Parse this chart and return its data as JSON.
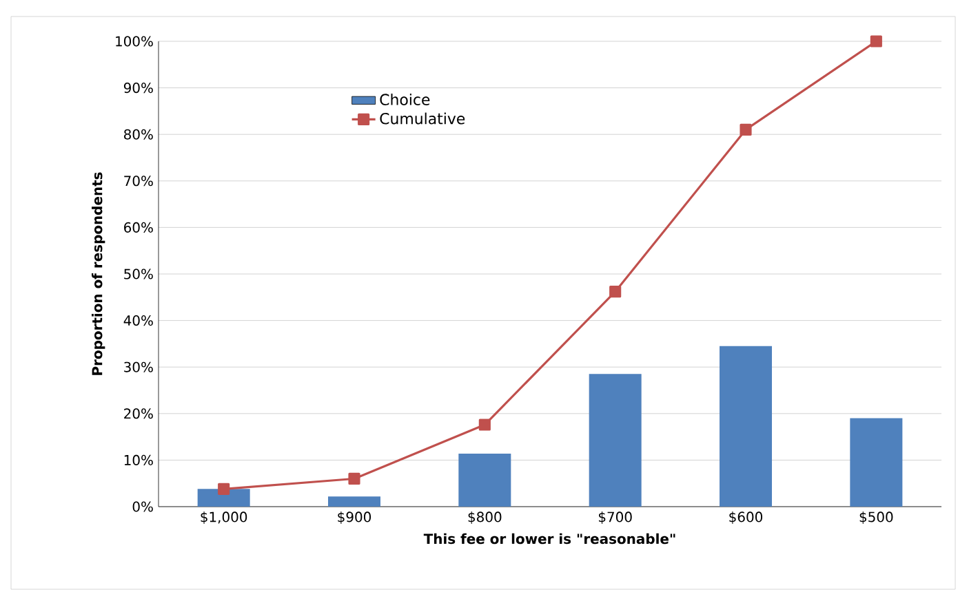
{
  "chart_data": {
    "type": "bar",
    "xlabel": "This fee or lower is \"reasonable\"",
    "ylabel": "Proportion of respondents",
    "categories": [
      "$1,000",
      "$900",
      "$800",
      "$700",
      "$600",
      "$500"
    ],
    "series": [
      {
        "name": "Choice",
        "color": "#4f81bd",
        "values": [
          3.8,
          2.2,
          11.4,
          28.5,
          34.5,
          19.0
        ]
      },
      {
        "name": "Cumulative",
        "type": "line",
        "color": "#c0504d",
        "marker": "square",
        "values": [
          3.8,
          6.0,
          17.6,
          46.2,
          81.0,
          100
        ]
      }
    ],
    "ylim": [
      0,
      100
    ],
    "yticks": [
      {
        "value": 0,
        "label": "0%"
      },
      {
        "value": 10,
        "label": "10%"
      },
      {
        "value": 20,
        "label": "20%"
      },
      {
        "value": 30,
        "label": "30%"
      },
      {
        "value": 40,
        "label": "40%"
      },
      {
        "value": 50,
        "label": "50%"
      },
      {
        "value": 60,
        "label": "60%"
      },
      {
        "value": 70,
        "label": "70%"
      },
      {
        "value": 80,
        "label": "80%"
      },
      {
        "value": 90,
        "label": "90%"
      },
      {
        "value": 100,
        "label": "100%"
      }
    ],
    "grid": "y",
    "legend": "top left"
  }
}
